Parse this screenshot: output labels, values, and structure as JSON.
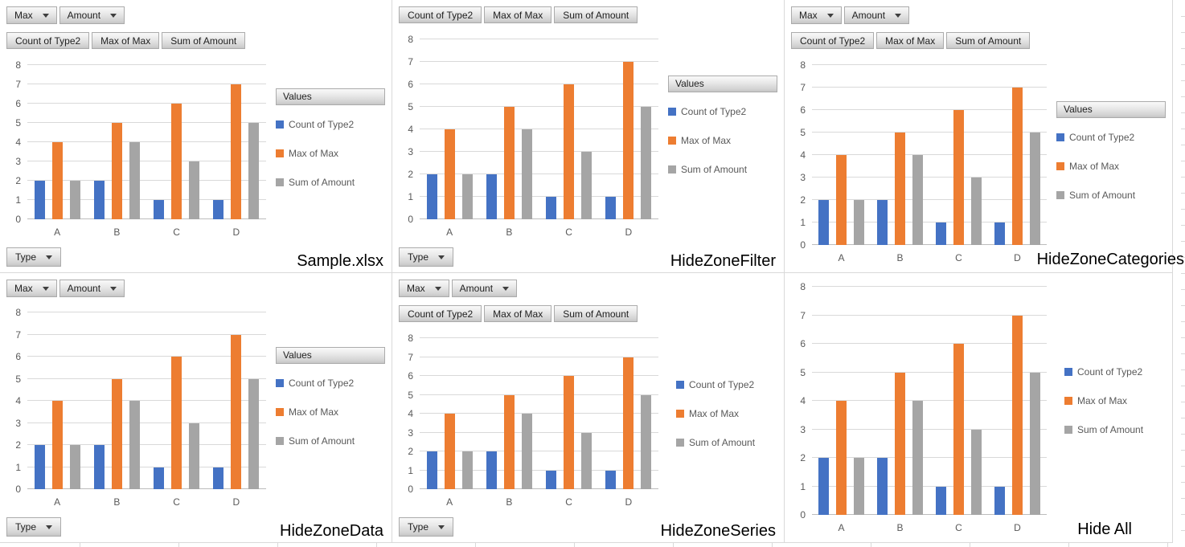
{
  "chart_data": {
    "type": "bar",
    "categories": [
      "A",
      "B",
      "C",
      "D"
    ],
    "series": [
      {
        "name": "Count of Type2",
        "color": "#4472C4",
        "values": [
          2,
          2,
          1,
          1
        ]
      },
      {
        "name": "Max of Max",
        "color": "#ED7D31",
        "values": [
          4,
          5,
          6,
          7
        ]
      },
      {
        "name": "Sum of Amount",
        "color": "#A5A5A5",
        "values": [
          2,
          4,
          3,
          5
        ]
      }
    ],
    "title": "",
    "xlabel": "",
    "ylabel": "",
    "ylim": [
      0,
      8
    ],
    "yticks": [
      0,
      1,
      2,
      3,
      4,
      5,
      6,
      7,
      8
    ],
    "grid": true,
    "legend_position": "right"
  },
  "filter_buttons": [
    {
      "label": "Max"
    },
    {
      "label": "Amount"
    }
  ],
  "field_buttons": [
    "Count of Type2",
    "Max of Max",
    "Sum of Amount"
  ],
  "legend_header": "Values",
  "categories_button_label": "Type",
  "panels": [
    {
      "caption": "Sample.xlsx",
      "zones": {
        "filter_zone": true,
        "data_zone": true,
        "series_zone": true,
        "categories_zone": true
      }
    },
    {
      "caption": "HideZoneFilter",
      "zones": {
        "filter_zone": false,
        "data_zone": true,
        "series_zone": true,
        "categories_zone": true
      }
    },
    {
      "caption": "HideZoneCategories",
      "zones": {
        "filter_zone": true,
        "data_zone": true,
        "series_zone": true,
        "categories_zone": false
      }
    },
    {
      "caption": "HideZoneData",
      "zones": {
        "filter_zone": true,
        "data_zone": false,
        "series_zone": true,
        "categories_zone": true
      }
    },
    {
      "caption": "HideZoneSeries",
      "zones": {
        "filter_zone": true,
        "data_zone": true,
        "series_zone": false,
        "categories_zone": true
      }
    },
    {
      "caption": "Hide All",
      "zones": {
        "filter_zone": false,
        "data_zone": false,
        "series_zone": false,
        "categories_zone": false
      }
    }
  ],
  "ui_colors": {
    "gridline": "#D9D9D9",
    "axis_line": "#BCBCBC",
    "axis_text": "#595959",
    "legend_text": "#595959",
    "button_border": "#ABABAB",
    "button_text": "#1F1F1F",
    "caption_text": "#000000"
  }
}
